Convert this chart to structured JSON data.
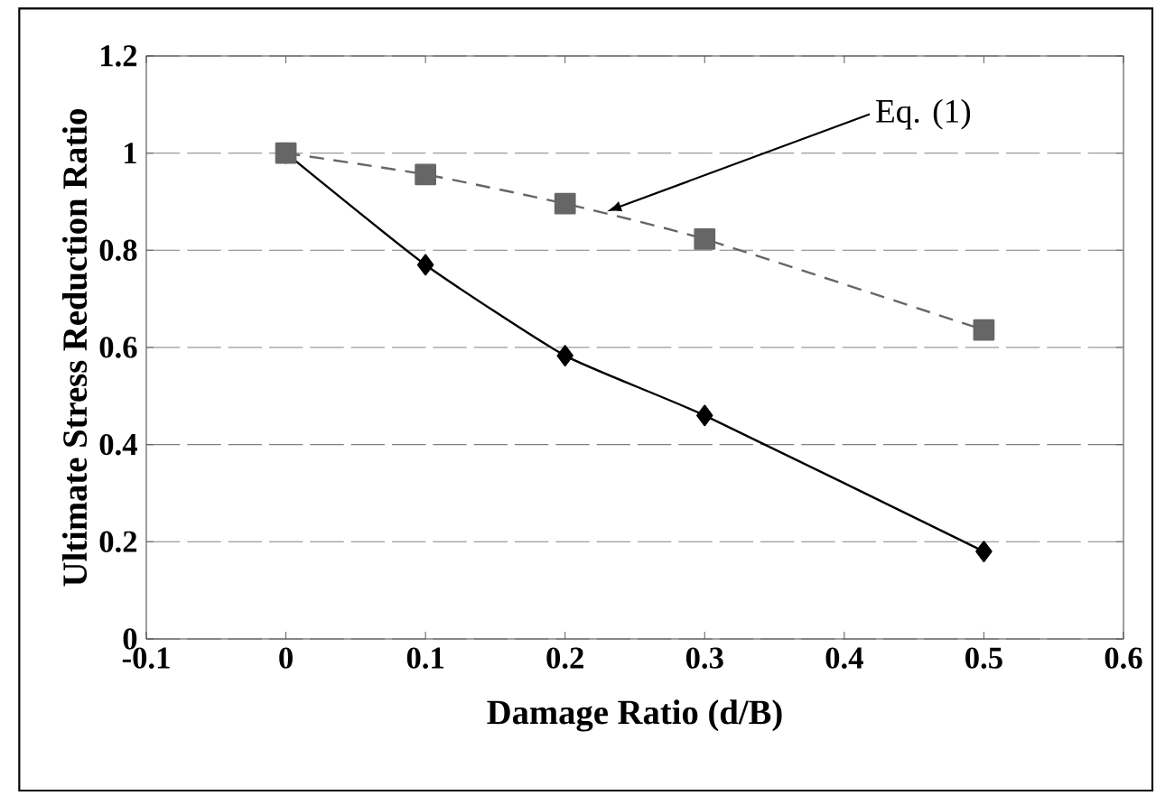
{
  "chart_data": {
    "type": "line",
    "xlabel": "Damage Ratio (d/B)",
    "ylabel": "Ultimate Stress Reduction Ratio",
    "x": [
      0,
      0.1,
      0.2,
      0.3,
      0.5
    ],
    "series": [
      {
        "color": "#000000",
        "values": [
          1.0,
          0.77,
          0.583,
          0.46,
          0.18
        ],
        "marker": "diamond",
        "line_style": "solid"
      },
      {
        "color": "#666666",
        "values": [
          1.0,
          0.956,
          0.896,
          0.823,
          0.636
        ],
        "marker": "square",
        "line_style": "dashed"
      }
    ],
    "xlim": [
      -0.1,
      0.6
    ],
    "ylim": [
      0,
      1.2
    ],
    "xticks": [
      -0.1,
      0,
      0.1,
      0.2,
      0.3,
      0.4,
      0.5,
      0.6
    ],
    "yticks": [
      0,
      0.2,
      0.4,
      0.6,
      0.8,
      1,
      1.2
    ],
    "grid": "y",
    "annotations": [
      {
        "text": "Eq. (1)",
        "x": 0.23,
        "y": 0.88
      }
    ]
  }
}
